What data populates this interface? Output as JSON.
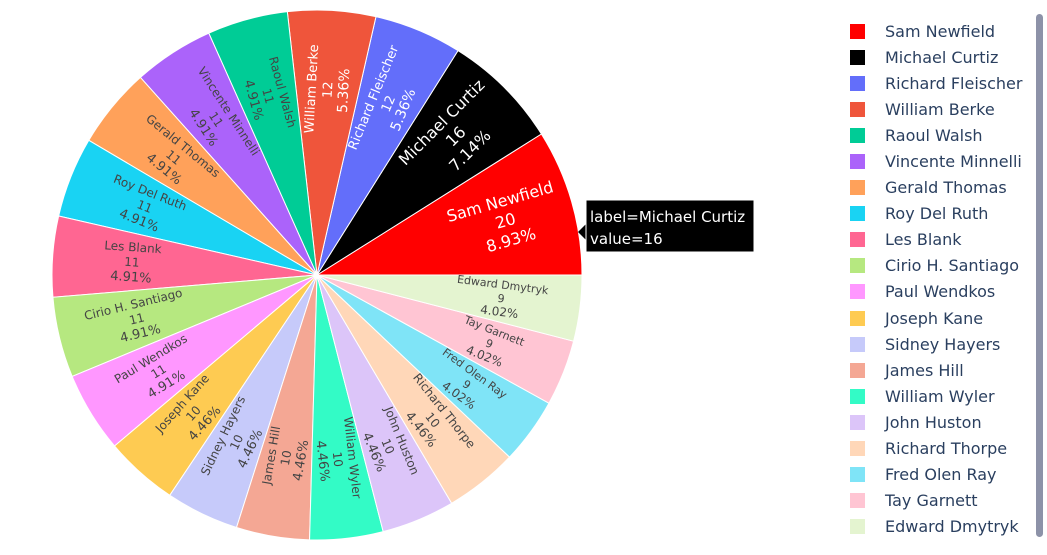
{
  "chart_data": {
    "type": "pie",
    "title": "",
    "slices": [
      {
        "label": "Sam Newfield",
        "value": 20,
        "percent": "8.93%",
        "color": "#FF0000"
      },
      {
        "label": "Michael Curtiz",
        "value": 16,
        "percent": "7.14%",
        "color": "#000000"
      },
      {
        "label": "Richard Fleischer",
        "value": 12,
        "percent": "5.36%",
        "color": "#636EFA"
      },
      {
        "label": "William Berke",
        "value": 12,
        "percent": "5.36%",
        "color": "#EF553B"
      },
      {
        "label": "Raoul Walsh",
        "value": 11,
        "percent": "4.91%",
        "color": "#00CC96"
      },
      {
        "label": "Vincente Minnelli",
        "value": 11,
        "percent": "4.91%",
        "color": "#AB63FA"
      },
      {
        "label": "Gerald Thomas",
        "value": 11,
        "percent": "4.91%",
        "color": "#FFA15A"
      },
      {
        "label": "Roy Del Ruth",
        "value": 11,
        "percent": "4.91%",
        "color": "#19D3F3"
      },
      {
        "label": "Les Blank",
        "value": 11,
        "percent": "4.91%",
        "color": "#FF6692"
      },
      {
        "label": "Cirio H. Santiago",
        "value": 11,
        "percent": "4.91%",
        "color": "#B6E880"
      },
      {
        "label": "Paul Wendkos",
        "value": 11,
        "percent": "4.91%",
        "color": "#FF97FF"
      },
      {
        "label": "Joseph Kane",
        "value": 10,
        "percent": "4.46%",
        "color": "#FECB52"
      },
      {
        "label": "Sidney Hayers",
        "value": 10,
        "percent": "4.46%",
        "color": "#C6CAFA"
      },
      {
        "label": "James Hill",
        "value": 10,
        "percent": "4.46%",
        "color": "#F4A794"
      },
      {
        "label": "William Wyler",
        "value": 10,
        "percent": "4.46%",
        "color": "#33FBC6"
      },
      {
        "label": "John Huston",
        "value": 10,
        "percent": "4.46%",
        "color": "#DCC5F9"
      },
      {
        "label": "Richard Thorpe",
        "value": 10,
        "percent": "4.46%",
        "color": "#FFD7B8"
      },
      {
        "label": "Fred Olen Ray",
        "value": 9,
        "percent": "4.02%",
        "color": "#7FE4F7"
      },
      {
        "label": "Tay Garnett",
        "value": 9,
        "percent": "4.02%",
        "color": "#FFC5D3"
      },
      {
        "label": "Edward Dmytryk",
        "value": 9,
        "percent": "4.02%",
        "color": "#E4F4D0"
      }
    ],
    "hover": {
      "label_line": "label=Michael Curtiz",
      "value_line": "value=16"
    },
    "legend_position": "right"
  }
}
